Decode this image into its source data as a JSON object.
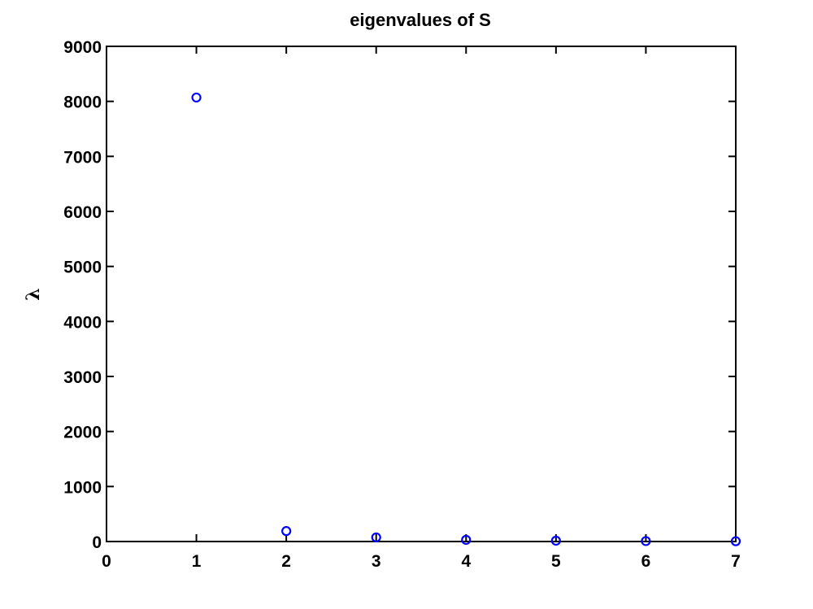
{
  "chart_data": {
    "type": "scatter",
    "title": "eigenvalues of S",
    "xlabel": "",
    "ylabel": "λ",
    "xlim": [
      0,
      7
    ],
    "ylim": [
      0,
      9000
    ],
    "xticks": [
      "0",
      "1",
      "2",
      "3",
      "4",
      "5",
      "6",
      "7"
    ],
    "yticks": [
      "0",
      "1000",
      "2000",
      "3000",
      "4000",
      "5000",
      "6000",
      "7000",
      "8000",
      "9000"
    ],
    "grid": false,
    "marker": "circle-open",
    "colors": {
      "marker": "#0000ff",
      "axes": "#000000"
    },
    "series": [
      {
        "x": [
          1,
          2,
          3,
          4,
          5,
          6,
          7
        ],
        "y": [
          8070,
          190,
          75,
          30,
          15,
          8,
          5
        ]
      }
    ]
  }
}
